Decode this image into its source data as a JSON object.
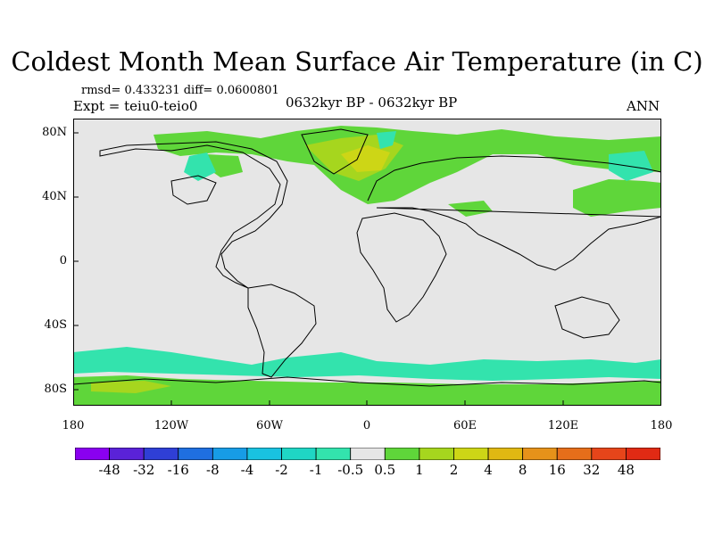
{
  "title": "Coldest Month Mean Surface Air Temperature (in C)",
  "stats": "rmsd= 0.433231 diff= 0.0600801",
  "experiment": "Expt = teiu0-teio0",
  "period": "0632kyr BP - 0632kyr BP",
  "season": "ANN",
  "lat_labels": [
    "80N",
    "40N",
    "0",
    "40S",
    "80S"
  ],
  "lon_labels": [
    "180",
    "120W",
    "60W",
    "0",
    "60E",
    "120E",
    "180"
  ],
  "colorbar": {
    "labels": [
      "-48",
      "-32",
      "-16",
      "-8",
      "-4",
      "-2",
      "-1",
      "-0.5",
      "0.5",
      "1",
      "2",
      "4",
      "8",
      "16",
      "32",
      "48"
    ],
    "colors": [
      "#8a00f0",
      "#5a22d8",
      "#2f3fd6",
      "#1f6fe0",
      "#179ce6",
      "#19c2e0",
      "#1fd6c4",
      "#33e3ad",
      "#e6e6e6",
      "#5fd63a",
      "#a6d61e",
      "#cdd616",
      "#e0b812",
      "#e6921a",
      "#e66e1a",
      "#e6451a",
      "#e02a14"
    ]
  },
  "colors": {
    "background": "#e6e6e6",
    "land_line": "#000000"
  }
}
